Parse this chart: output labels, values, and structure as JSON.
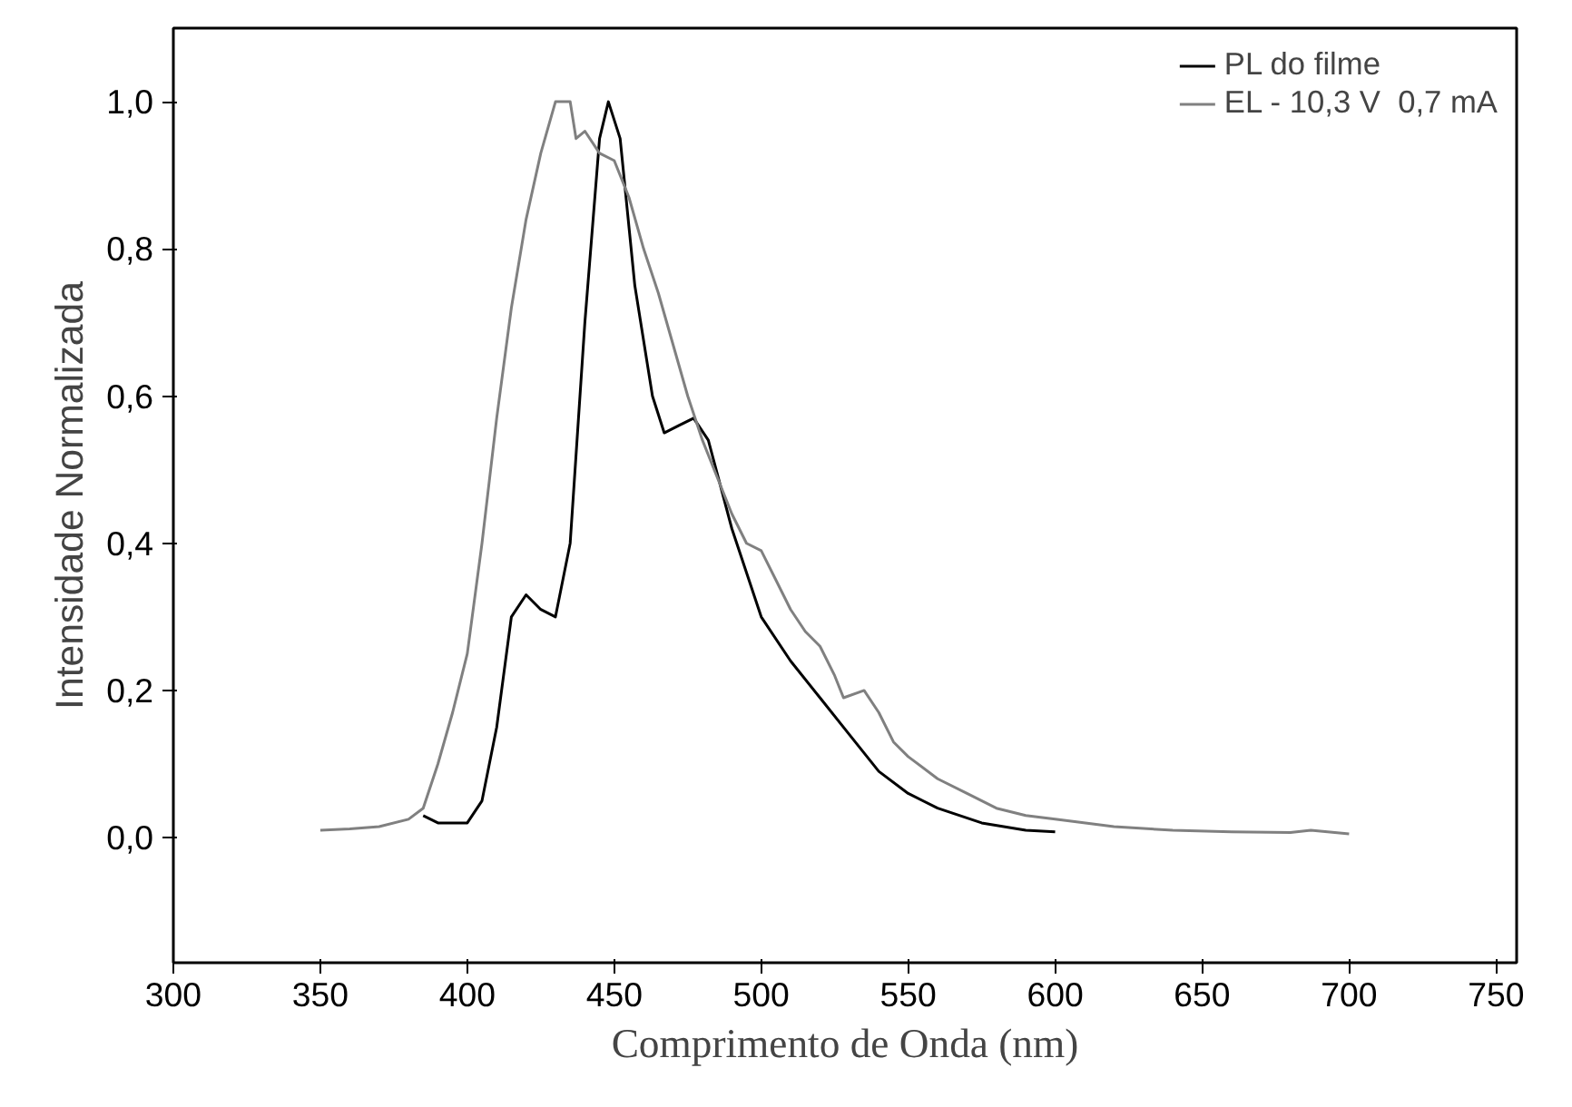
{
  "chart_data": {
    "type": "line",
    "xlabel": "Comprimento de Onda (nm)",
    "ylabel": "Intensidade Normalizada",
    "xlim": [
      300,
      757
    ],
    "ylim": [
      -0.17,
      1.1
    ],
    "xticks": [
      300,
      350,
      400,
      450,
      500,
      550,
      600,
      650,
      700,
      750
    ],
    "yticks": [
      {
        "value": 0,
        "label": "0,0"
      },
      {
        "value": 0.2,
        "label": "0,2"
      },
      {
        "value": 0.4,
        "label": "0,4"
      },
      {
        "value": 0.6,
        "label": "0,6"
      },
      {
        "value": 0.8,
        "label": "0,8"
      },
      {
        "value": 1.0,
        "label": "1,0"
      }
    ],
    "grid": false,
    "legend": "top right",
    "line_style": "solid",
    "series": [
      {
        "name": "PL do filme",
        "color": "#000000",
        "x": [
          385,
          390,
          400,
          405,
          410,
          415,
          420,
          425,
          430,
          435,
          440,
          445,
          448,
          452,
          457,
          463,
          467,
          472,
          477,
          482,
          490,
          500,
          510,
          520,
          530,
          540,
          550,
          560,
          575,
          590,
          600
        ],
        "values": [
          0.03,
          0.02,
          0.02,
          0.05,
          0.15,
          0.3,
          0.33,
          0.31,
          0.3,
          0.4,
          0.7,
          0.95,
          1.0,
          0.95,
          0.75,
          0.6,
          0.55,
          0.56,
          0.57,
          0.54,
          0.42,
          0.3,
          0.24,
          0.19,
          0.14,
          0.09,
          0.06,
          0.04,
          0.02,
          0.01,
          0.008
        ]
      },
      {
        "name": "EL - 10,3 V  0,7 mA",
        "color": "#808080",
        "x": [
          350,
          360,
          370,
          380,
          385,
          390,
          395,
          400,
          405,
          410,
          415,
          420,
          425,
          430,
          435,
          437,
          440,
          445,
          450,
          455,
          460,
          465,
          470,
          475,
          480,
          485,
          490,
          495,
          500,
          505,
          510,
          515,
          520,
          525,
          528,
          535,
          540,
          545,
          550,
          560,
          570,
          580,
          590,
          600,
          620,
          640,
          660,
          680,
          687,
          700
        ],
        "values": [
          0.01,
          0.012,
          0.015,
          0.025,
          0.04,
          0.1,
          0.17,
          0.25,
          0.4,
          0.57,
          0.72,
          0.84,
          0.93,
          1.0,
          1.0,
          0.95,
          0.96,
          0.93,
          0.92,
          0.87,
          0.8,
          0.74,
          0.67,
          0.6,
          0.54,
          0.49,
          0.44,
          0.4,
          0.39,
          0.35,
          0.31,
          0.28,
          0.26,
          0.22,
          0.19,
          0.2,
          0.17,
          0.13,
          0.11,
          0.08,
          0.06,
          0.04,
          0.03,
          0.025,
          0.015,
          0.01,
          0.008,
          0.007,
          0.01,
          0.005
        ]
      }
    ]
  }
}
